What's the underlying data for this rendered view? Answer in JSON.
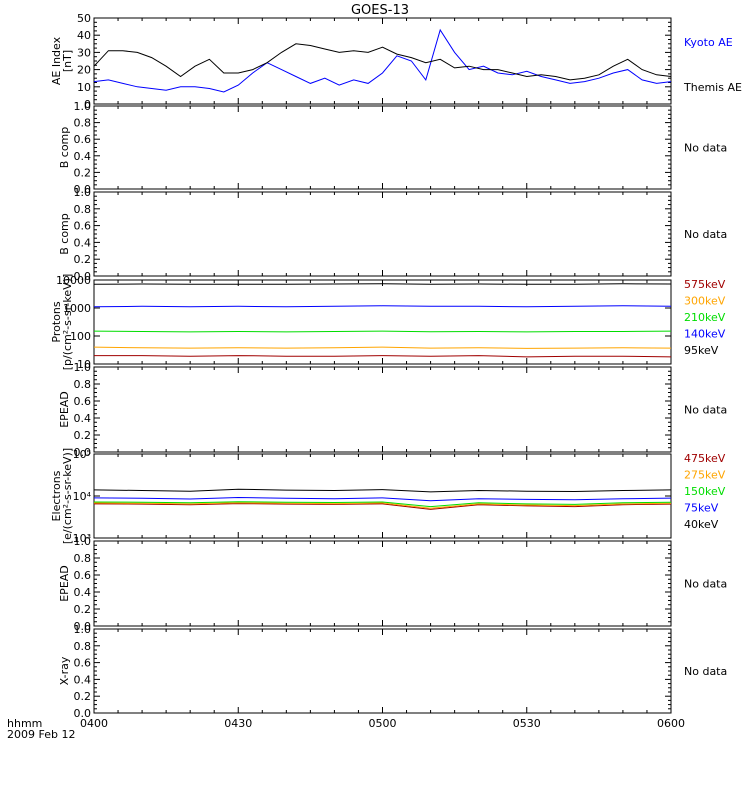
{
  "title": "GOES-13",
  "x_axis": {
    "label": "hhmm",
    "date": "2009 Feb 12",
    "ticks": [
      "0400",
      "0430",
      "0500",
      "0530",
      "0600"
    ]
  },
  "colors": {
    "axis": "#000000",
    "kyoto": "#0000ff",
    "themis": "#000000",
    "red": "#a00000",
    "orange": "#ffa500",
    "green": "#00dd00",
    "blue": "#0000ff",
    "black": "#000000"
  },
  "chart_data": [
    {
      "type": "line",
      "panel": "ae",
      "ylabel": "AE Index\n[nT]",
      "ylim": [
        0,
        50
      ],
      "yticks": [
        "0",
        "10",
        "20",
        "30",
        "40",
        "50"
      ],
      "x_minutes_from_0400": [
        0,
        3,
        6,
        9,
        12,
        15,
        18,
        21,
        24,
        27,
        30,
        33,
        36,
        39,
        42,
        45,
        48,
        51,
        54,
        57,
        60,
        63,
        66,
        69,
        72,
        75,
        78,
        81,
        84,
        87,
        90,
        93,
        96,
        99,
        102,
        105,
        108,
        111,
        114,
        117,
        120
      ],
      "series": [
        {
          "name": "Kyoto AE",
          "color": "#0000ff",
          "values": [
            13,
            14,
            12,
            10,
            9,
            8,
            10,
            10,
            9,
            7,
            11,
            18,
            24,
            20,
            16,
            12,
            15,
            11,
            14,
            12,
            18,
            28,
            25,
            14,
            43,
            30,
            20,
            22,
            18,
            17,
            19,
            16,
            14,
            12,
            13,
            15,
            18,
            20,
            14,
            12,
            13
          ]
        },
        {
          "name": "Themis AE",
          "color": "#000000",
          "values": [
            22,
            31,
            31,
            30,
            27,
            22,
            16,
            22,
            26,
            18,
            18,
            20,
            24,
            30,
            35,
            34,
            32,
            30,
            31,
            30,
            33,
            29,
            27,
            24,
            26,
            21,
            22,
            20,
            20,
            18,
            16,
            17,
            16,
            14,
            15,
            17,
            22,
            26,
            20,
            17,
            16
          ]
        }
      ]
    },
    {
      "type": "line",
      "panel": "bcomp1",
      "ylabel": "B comp",
      "ylim": [
        0,
        1
      ],
      "yticks": [
        "0.0",
        "0.2",
        "0.4",
        "0.6",
        "0.8",
        "1.0"
      ],
      "series": [],
      "note_label": "No data"
    },
    {
      "type": "line",
      "panel": "bcomp2",
      "ylabel": "B comp",
      "ylim": [
        0,
        1
      ],
      "yticks": [
        "0.0",
        "0.2",
        "0.4",
        "0.6",
        "0.8",
        "1.0"
      ],
      "series": [],
      "note_label": "No data"
    },
    {
      "type": "line",
      "panel": "protons",
      "scale": "log",
      "ylabel": "Protons\n[p/(cm²-s-sr-keV)]",
      "ylim": [
        10,
        10000
      ],
      "yticks": [
        "10",
        "100",
        "1000",
        "10000"
      ],
      "x_minutes_from_0400": [
        0,
        10,
        20,
        30,
        40,
        50,
        60,
        70,
        80,
        90,
        100,
        110,
        120
      ],
      "series": [
        {
          "name": "575keV",
          "color": "#a00000",
          "values": [
            20,
            20,
            19,
            20,
            19,
            19,
            20,
            19,
            20,
            18,
            19,
            19,
            18
          ]
        },
        {
          "name": "300keV",
          "color": "#ffa500",
          "values": [
            40,
            38,
            37,
            38,
            37,
            38,
            40,
            37,
            38,
            36,
            37,
            38,
            37
          ]
        },
        {
          "name": "210keV",
          "color": "#00dd00",
          "values": [
            150,
            145,
            140,
            145,
            140,
            145,
            150,
            142,
            145,
            140,
            145,
            145,
            150
          ]
        },
        {
          "name": "140keV",
          "color": "#0000ff",
          "values": [
            1100,
            1150,
            1100,
            1150,
            1100,
            1150,
            1200,
            1150,
            1150,
            1100,
            1150,
            1200,
            1150
          ]
        },
        {
          "name": "95keV",
          "color": "#000000",
          "values": [
            7000,
            7200,
            7000,
            7100,
            7000,
            7200,
            7400,
            7100,
            7200,
            7000,
            7100,
            7300,
            7200
          ]
        }
      ]
    },
    {
      "type": "line",
      "panel": "epead1",
      "ylabel": "EPEAD",
      "ylim": [
        0,
        1
      ],
      "yticks": [
        "0.0",
        "0.2",
        "0.4",
        "0.6",
        "0.8",
        "1.0"
      ],
      "series": [],
      "note_label": "No data"
    },
    {
      "type": "line",
      "panel": "electrons",
      "scale": "log",
      "ylabel": "Electrons\n[e/(cm²-s-sr-keV)]",
      "ylim": [
        1000,
        100000
      ],
      "yticks": [
        "10³",
        "10⁴",
        "10⁵"
      ],
      "x_minutes_from_0400": [
        0,
        10,
        20,
        30,
        40,
        50,
        60,
        70,
        80,
        90,
        100,
        110,
        120
      ],
      "series": [
        {
          "name": "475keV",
          "color": "#a00000",
          "values": [
            6500,
            6400,
            6200,
            6600,
            6400,
            6300,
            6500,
            4800,
            6200,
            5800,
            5600,
            6200,
            6400
          ]
        },
        {
          "name": "275keV",
          "color": "#ffa500",
          "values": [
            6800,
            6700,
            6500,
            6900,
            6700,
            6600,
            6800,
            5100,
            6500,
            6100,
            5900,
            6500,
            6700
          ]
        },
        {
          "name": "150keV",
          "color": "#00dd00",
          "values": [
            7200,
            7100,
            6900,
            7300,
            7100,
            7000,
            7200,
            5600,
            6900,
            6500,
            6300,
            6900,
            7100
          ]
        },
        {
          "name": "75keV",
          "color": "#0000ff",
          "values": [
            9000,
            8800,
            8500,
            9200,
            8800,
            8600,
            9000,
            7700,
            8600,
            8300,
            8100,
            8600,
            8900
          ]
        },
        {
          "name": "40keV",
          "color": "#000000",
          "values": [
            14000,
            13500,
            13000,
            14500,
            13800,
            13500,
            14200,
            12500,
            13500,
            13000,
            12800,
            13500,
            14000
          ]
        }
      ]
    },
    {
      "type": "line",
      "panel": "epead2",
      "ylabel": "EPEAD",
      "ylim": [
        0,
        1
      ],
      "yticks": [
        "0.0",
        "0.2",
        "0.4",
        "0.6",
        "0.8",
        "1.0"
      ],
      "series": [],
      "note_label": "No data"
    },
    {
      "type": "line",
      "panel": "xray",
      "ylabel": "X-ray",
      "ylim": [
        0,
        1
      ],
      "yticks": [
        "0.0",
        "0.2",
        "0.4",
        "0.6",
        "0.8",
        "1.0"
      ],
      "series": [],
      "note_label": "No data"
    }
  ]
}
